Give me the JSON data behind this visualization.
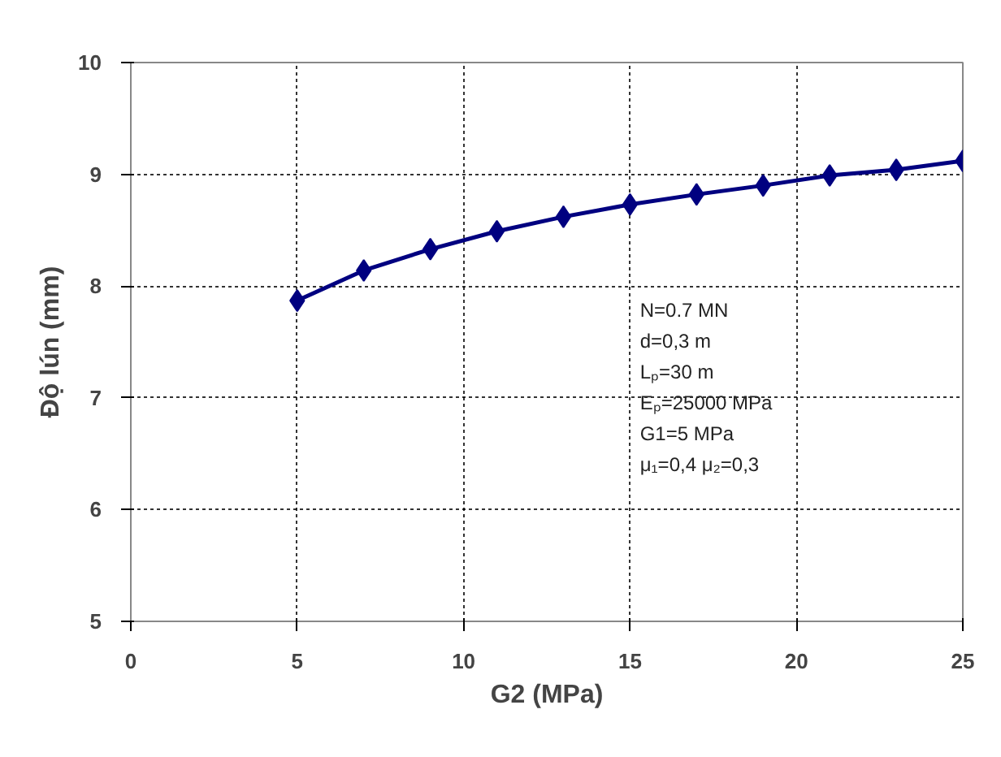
{
  "chart_data": {
    "type": "line",
    "xlabel": "G2 (MPa)",
    "ylabel": "Độ lún (mm)",
    "x": [
      5,
      7,
      9,
      11,
      13,
      15,
      17,
      19,
      21,
      23,
      25
    ],
    "series": [
      {
        "color": "#000080",
        "values": [
          7.87,
          8.14,
          8.33,
          8.49,
          8.62,
          8.73,
          8.82,
          8.9,
          8.99,
          9.04,
          9.12
        ]
      }
    ],
    "xlim": [
      0,
      25
    ],
    "ylim": [
      5,
      10
    ],
    "xticks": [
      0,
      5,
      10,
      15,
      20,
      25
    ],
    "yticks": [
      5,
      6,
      7,
      8,
      9,
      10
    ],
    "grid": true,
    "marker": "diamond",
    "line_style": "solid",
    "annotations": [
      "N=0.7 MN",
      "d=0,3 m",
      "Lₚ=30 m",
      "Eₚ=25000 MPa",
      "G1=5 MPa",
      "μ₁=0,4    μ₂=0,3"
    ]
  }
}
